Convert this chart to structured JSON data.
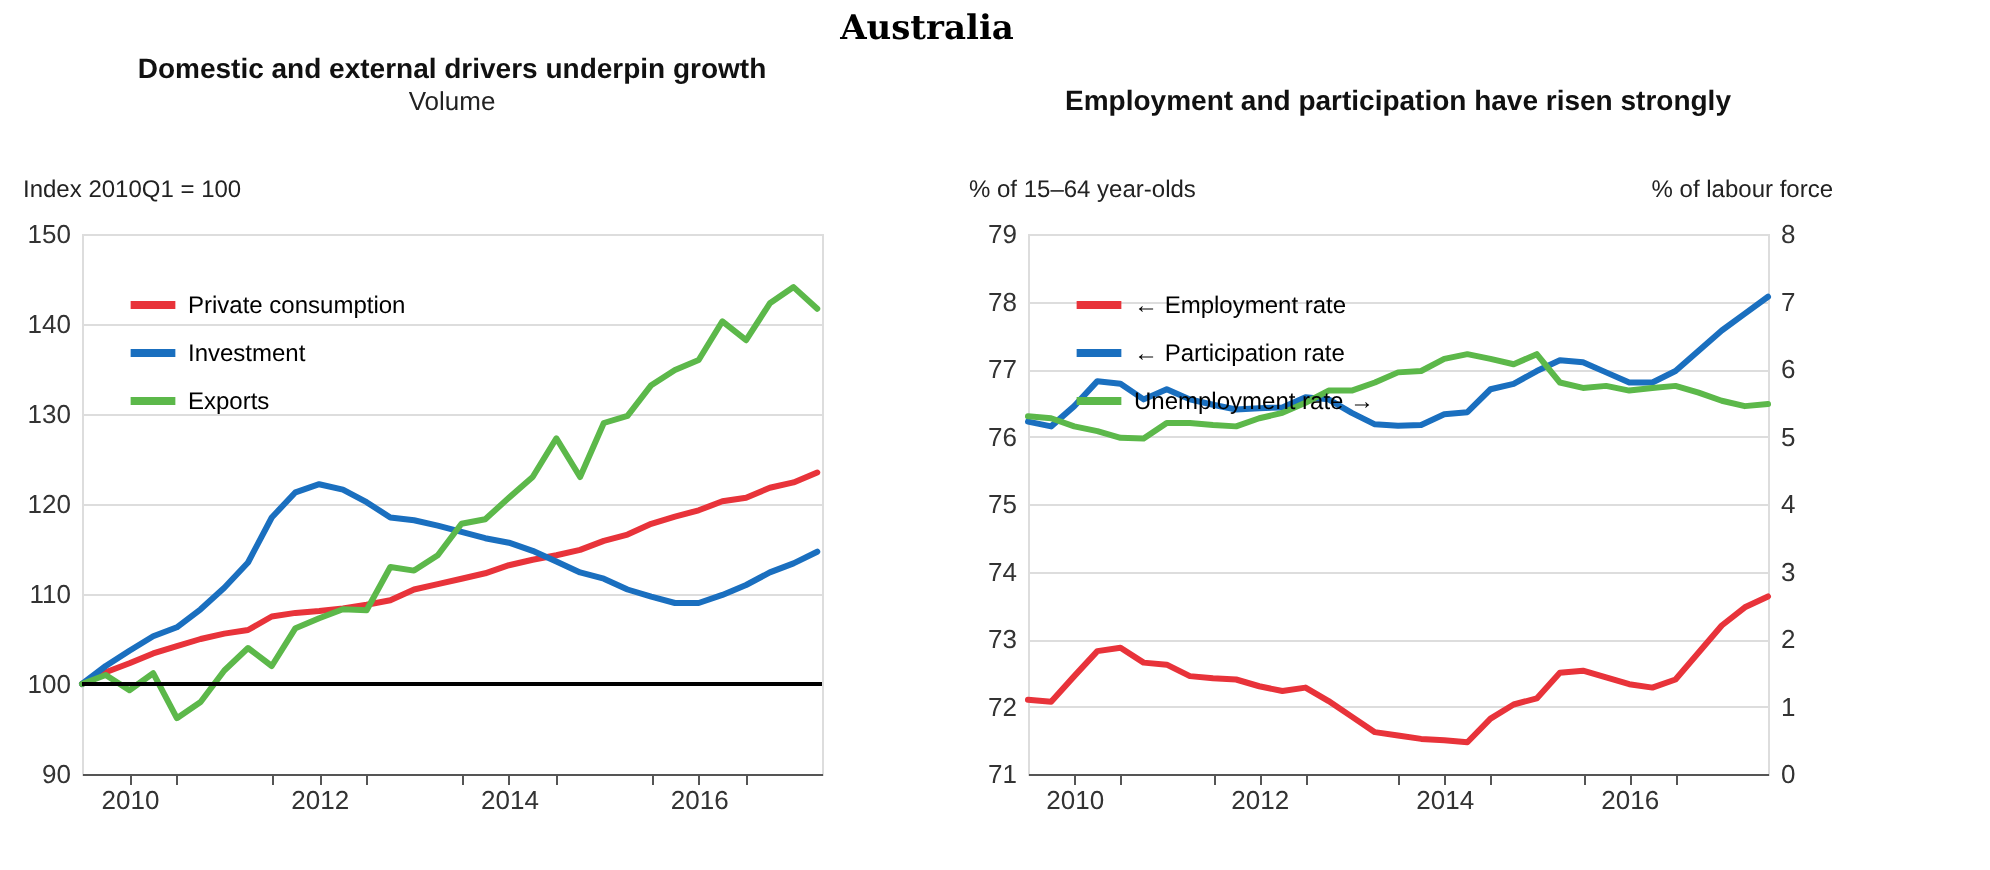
{
  "chart_data": [
    {
      "type": "line",
      "title": "Domestic and external drivers underpin growth",
      "subtitle": "Volume",
      "ylabel": "Index 2010Q1 = 100",
      "annotations": [
        "Australia"
      ],
      "x": [
        2010.0,
        2010.25,
        2010.5,
        2010.75,
        2011.0,
        2011.25,
        2011.5,
        2011.75,
        2012.0,
        2012.25,
        2012.5,
        2012.75,
        2013.0,
        2013.25,
        2013.5,
        2013.75,
        2014.0,
        2014.25,
        2014.5,
        2014.75,
        2015.0,
        2015.25,
        2015.5,
        2015.75,
        2016.0,
        2016.25,
        2016.5,
        2016.75,
        2017.0,
        2017.25,
        2017.5,
        2017.75
      ],
      "series": [
        {
          "name": "Private consumption",
          "color": "#e8333a",
          "values": [
            100,
            101.3,
            102.3,
            103.4,
            104.2,
            105,
            105.6,
            106,
            107.5,
            107.9,
            108.1,
            108.4,
            108.8,
            109.3,
            110.5,
            111.1,
            111.7,
            112.3,
            113.2,
            113.8,
            114.3,
            114.9,
            115.9,
            116.6,
            117.8,
            118.6,
            119.3,
            120.3,
            120.7,
            121.8,
            122.4,
            123.5
          ]
        },
        {
          "name": "Investment",
          "color": "#1a6fbf",
          "values": [
            100,
            102,
            103.7,
            105.3,
            106.3,
            108.3,
            110.7,
            113.5,
            118.5,
            121.3,
            122.2,
            121.6,
            120.2,
            118.5,
            118.2,
            117.6,
            116.9,
            116.2,
            115.7,
            114.8,
            113.6,
            112.4,
            111.7,
            110.5,
            109.7,
            109,
            109,
            109.9,
            111,
            112.4,
            113.4,
            114.7
          ]
        },
        {
          "name": "Exports",
          "color": "#5cb84a",
          "values": [
            100,
            101,
            99.3,
            101.2,
            96.2,
            98,
            101.5,
            104,
            102,
            106.2,
            107.3,
            108.3,
            108.2,
            113,
            112.6,
            114.3,
            117.8,
            118.3,
            120.7,
            123,
            127.3,
            123,
            129,
            129.8,
            133.2,
            134.9,
            136,
            140.3,
            138.2,
            142.3,
            144.1,
            141.7
          ]
        }
      ],
      "xlim": [
        2010,
        2017.8
      ],
      "xticks": [
        {
          "value": 2010.5,
          "label": "2010"
        },
        {
          "value": 2011,
          "label": null
        },
        {
          "value": 2012,
          "label": null
        },
        {
          "value": 2012.5,
          "label": "2012"
        },
        {
          "value": 2013,
          "label": null
        },
        {
          "value": 2014,
          "label": null
        },
        {
          "value": 2014.5,
          "label": "2014"
        },
        {
          "value": 2015,
          "label": null
        },
        {
          "value": 2016,
          "label": null
        },
        {
          "value": 2016.5,
          "label": "2016"
        },
        {
          "value": 2017,
          "label": null
        }
      ],
      "ylim": [
        90,
        150
      ],
      "yticks": [
        90,
        100,
        110,
        120,
        130,
        140,
        150
      ],
      "ref_lines": [
        {
          "axis": "y",
          "value": 100,
          "color": "#000000"
        }
      ],
      "grid": "y",
      "legend": "top left"
    },
    {
      "type": "line",
      "title": "Employment and participation have risen strongly",
      "ylabel": "% of 15–64 year-olds",
      "y2label": "% of labour force",
      "x": [
        2010.0,
        2010.25,
        2010.5,
        2010.75,
        2011.0,
        2011.25,
        2011.5,
        2011.75,
        2012.0,
        2012.25,
        2012.5,
        2012.75,
        2013.0,
        2013.25,
        2013.5,
        2013.75,
        2014.0,
        2014.25,
        2014.5,
        2014.75,
        2015.0,
        2015.25,
        2015.5,
        2015.75,
        2016.0,
        2016.25,
        2016.5,
        2016.75,
        2017.0,
        2017.25,
        2017.5,
        2017.75,
        2018.0
      ],
      "series": [
        {
          "name": "← Employment rate",
          "color": "#e8333a",
          "values": [
            72.1,
            72.07,
            72.45,
            72.82,
            72.87,
            72.65,
            72.62,
            72.45,
            72.42,
            72.4,
            72.3,
            72.23,
            72.28,
            72.08,
            71.85,
            71.62,
            71.57,
            71.52,
            71.5,
            71.47,
            71.82,
            72.03,
            72.12,
            72.5,
            72.53,
            72.43,
            72.33,
            72.28,
            72.4,
            72.8,
            73.2,
            73.47,
            73.63
          ]
        },
        {
          "name": "← Participation rate",
          "color": "#1a6fbf",
          "values": [
            76.22,
            76.15,
            76.45,
            76.82,
            76.78,
            76.55,
            76.7,
            76.55,
            76.47,
            76.4,
            76.42,
            76.43,
            76.58,
            76.55,
            76.35,
            76.18,
            76.16,
            76.17,
            76.33,
            76.36,
            76.7,
            76.78,
            76.97,
            77.13,
            77.1,
            76.95,
            76.8,
            76.8,
            76.97,
            77.27,
            77.57,
            77.82,
            78.07
          ]
        },
        {
          "name": "Unemployment rate →",
          "color": "#5cb84a",
          "axis": "y2",
          "values": [
            5.3,
            5.27,
            5.15,
            5.08,
            4.98,
            4.97,
            5.2,
            5.2,
            5.17,
            5.15,
            5.27,
            5.35,
            5.5,
            5.68,
            5.68,
            5.8,
            5.95,
            5.97,
            6.15,
            6.22,
            6.15,
            6.07,
            6.22,
            5.8,
            5.72,
            5.75,
            5.68,
            5.72,
            5.75,
            5.65,
            5.53,
            5.45,
            5.48
          ]
        }
      ],
      "xlim": [
        2010,
        2018
      ],
      "xticks": [
        {
          "value": 2010.5,
          "label": "2010"
        },
        {
          "value": 2011,
          "label": null
        },
        {
          "value": 2012,
          "label": null
        },
        {
          "value": 2012.5,
          "label": "2012"
        },
        {
          "value": 2013,
          "label": null
        },
        {
          "value": 2014,
          "label": null
        },
        {
          "value": 2014.5,
          "label": "2014"
        },
        {
          "value": 2015,
          "label": null
        },
        {
          "value": 2016,
          "label": null
        },
        {
          "value": 2016.5,
          "label": "2016"
        },
        {
          "value": 2017,
          "label": null
        }
      ],
      "ylim": [
        71,
        79
      ],
      "yticks": [
        71,
        72,
        73,
        74,
        75,
        76,
        77,
        78,
        79
      ],
      "y2lim": [
        0,
        8
      ],
      "y2ticks": [
        0,
        1,
        2,
        3,
        4,
        5,
        6,
        7,
        8
      ],
      "grid": "y",
      "legend": "top left"
    }
  ]
}
